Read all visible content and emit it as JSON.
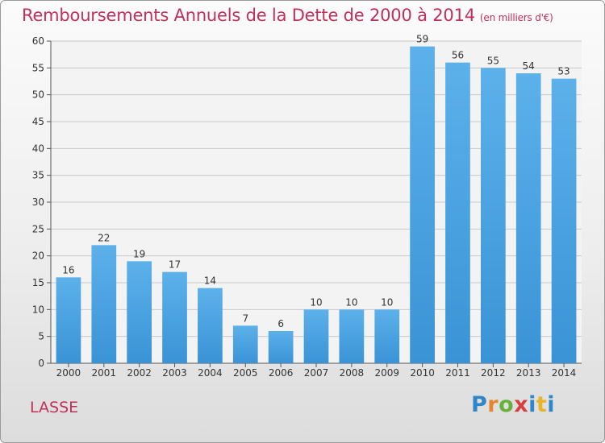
{
  "header": {
    "title": "Remboursements Annuels de la Dette de 2000 à 2014",
    "unit": "(en milliers d'€)"
  },
  "footer": {
    "commune": "LASSE",
    "logo_text": "Proxiti"
  },
  "colors": {
    "bar": "#3a93d6",
    "bar_light": "#5cb1ea",
    "title": "#c0305a",
    "grid": "#c8c8c8"
  },
  "chart_data": {
    "type": "bar",
    "title": "Remboursements Annuels de la Dette de 2000 à 2014",
    "xlabel": "",
    "ylabel": "",
    "categories": [
      "2000",
      "2001",
      "2002",
      "2003",
      "2004",
      "2005",
      "2006",
      "2007",
      "2008",
      "2009",
      "2010",
      "2011",
      "2012",
      "2013",
      "2014"
    ],
    "values": [
      16,
      22,
      19,
      17,
      14,
      7,
      6,
      10,
      10,
      10,
      59,
      56,
      55,
      54,
      53
    ],
    "ylim": [
      0,
      60
    ],
    "yticks": [
      0,
      5,
      10,
      15,
      20,
      25,
      30,
      35,
      40,
      45,
      50,
      55,
      60
    ],
    "grid": true,
    "data_labels": true
  }
}
